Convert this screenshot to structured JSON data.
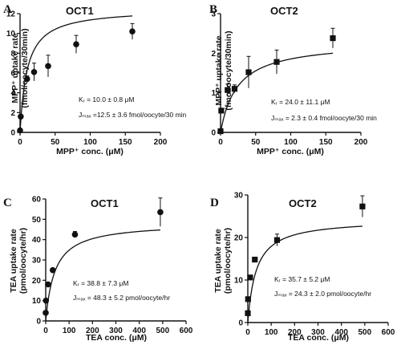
{
  "chart_data": [
    {
      "panel": "A",
      "title": "OCT1",
      "type": "scatter",
      "marker": "circle",
      "xlabel": "MPP⁺ conc. (μM)",
      "ylabel": [
        "MPP⁺ uptake rate",
        "(fmol/oocyte/30min)"
      ],
      "xlim": [
        0,
        200
      ],
      "ylim": [
        0,
        12
      ],
      "xticks": [
        0,
        50,
        100,
        150,
        200
      ],
      "yticks": [
        0,
        2,
        4,
        6,
        8,
        10,
        12
      ],
      "x": [
        0,
        1,
        10,
        20,
        40,
        80,
        160
      ],
      "y": [
        0.2,
        1.6,
        5.4,
        6.1,
        6.7,
        8.9,
        10.2
      ],
      "err": [
        0,
        0,
        0.3,
        0.9,
        1.1,
        0.9,
        0.8
      ],
      "fit": {
        "model": "michaelis-menten",
        "Km": 10.0,
        "Jmax": 12.5
      },
      "annotations": [
        "Kᵣ = 10.0 ± 0.8 μM",
        "Jₘₐₓ =12.5 ± 3.6 fmol/oocyte/30 min"
      ]
    },
    {
      "panel": "B",
      "title": "OCT2",
      "type": "scatter",
      "marker": "square",
      "xlabel": "MPP⁺ conc. (μM)",
      "ylabel": [
        "MPP⁺ uptake rate",
        "(fmol/oocyte/30min)"
      ],
      "xlim": [
        0,
        200
      ],
      "ylim": [
        0,
        3
      ],
      "xticks": [
        0,
        50,
        100,
        150,
        200
      ],
      "yticks": [
        0,
        1,
        2,
        3
      ],
      "x": [
        0,
        1,
        10,
        20,
        40,
        80,
        160
      ],
      "y": [
        0.03,
        0.55,
        1.07,
        1.1,
        1.52,
        1.78,
        2.38
      ],
      "err": [
        0,
        0,
        0.15,
        0.1,
        0.4,
        0.3,
        0.25
      ],
      "fit": {
        "model": "michaelis-menten",
        "Km": 24.0,
        "Jmax": 2.3
      },
      "annotations": [
        "Kᵣ = 24.0 ± 11.1 μM",
        "Jₘₐₓ = 2.3 ± 0.4 fmol/oocyte/30 min"
      ]
    },
    {
      "panel": "C",
      "title": "OCT1",
      "type": "scatter",
      "marker": "circle",
      "xlabel": "TEA conc. (μM)",
      "ylabel": [
        "TEA uptake rate",
        "(pmol/oocyte/hr)"
      ],
      "xlim": [
        0,
        600
      ],
      "ylim": [
        0,
        60
      ],
      "xticks": [
        0,
        100,
        200,
        300,
        400,
        500,
        600
      ],
      "yticks": [
        0,
        10,
        20,
        30,
        40,
        50,
        60
      ],
      "x": [
        0,
        1,
        10,
        30,
        125,
        490
      ],
      "y": [
        4,
        10,
        18,
        25,
        42.5,
        53.5
      ],
      "err": [
        0,
        0,
        0,
        0,
        1.5,
        7
      ],
      "fit": {
        "model": "michaelis-menten",
        "Km": 38.8,
        "Jmax": 48.3
      },
      "annotations": [
        "Kᵣ = 38.8 ± 7.3 μM",
        "Jₘₐₓ = 48.3 ± 5.2 pmol/oocyte/hr"
      ]
    },
    {
      "panel": "D",
      "title": "OCT2",
      "type": "scatter",
      "marker": "square",
      "xlabel": "TEA conc. (μM)",
      "ylabel": [
        "TEA uptake rate",
        "(pmol/oocyte/hr)"
      ],
      "xlim": [
        0,
        600
      ],
      "ylim": [
        0,
        30
      ],
      "xticks": [
        0,
        100,
        200,
        300,
        400,
        500,
        600
      ],
      "yticks": [
        0,
        10,
        20,
        30
      ],
      "x": [
        0,
        1,
        10,
        30,
        125,
        490
      ],
      "y": [
        2.2,
        5.5,
        10.6,
        14.8,
        19.4,
        27.3
      ],
      "err": [
        0,
        0,
        0,
        0.5,
        1.4,
        2.5
      ],
      "fit": {
        "model": "michaelis-menten",
        "Km": 35.7,
        "Jmax": 24.3
      },
      "annotations": [
        "Kᵣ = 35.7 ± 5.2 μM",
        "Jₘₐₓ = 24.3 ± 2.0 pmol/oocyte/hr"
      ]
    }
  ]
}
